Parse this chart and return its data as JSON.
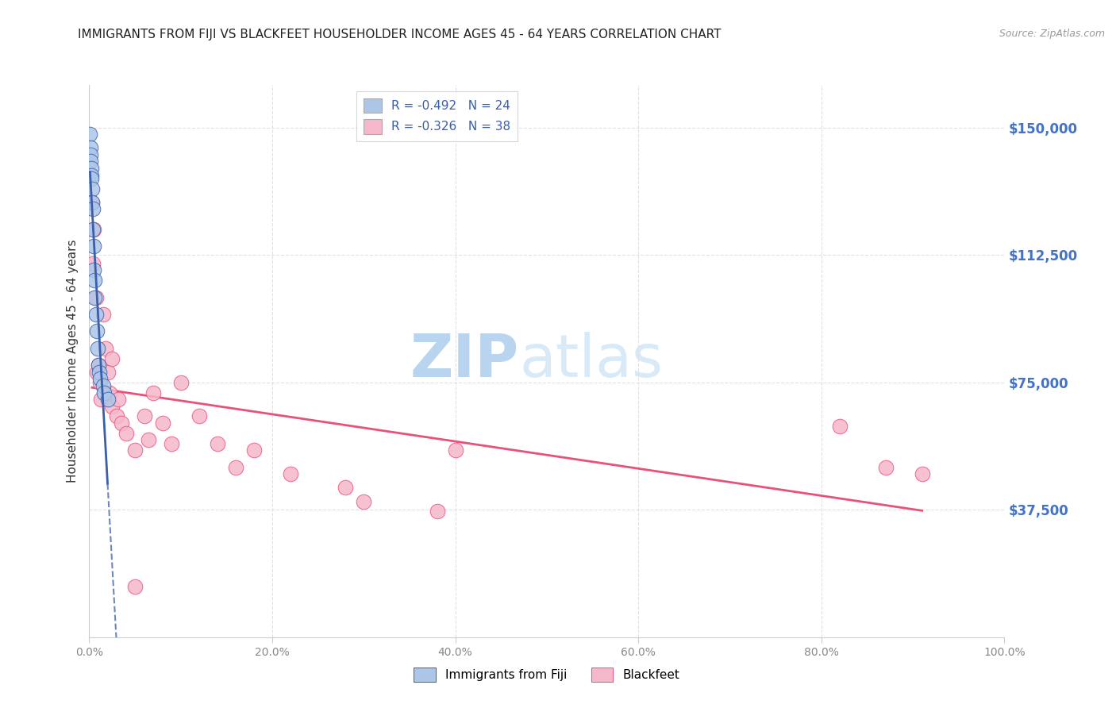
{
  "title": "IMMIGRANTS FROM FIJI VS BLACKFEET HOUSEHOLDER INCOME AGES 45 - 64 YEARS CORRELATION CHART",
  "source": "Source: ZipAtlas.com",
  "ylabel": "Householder Income Ages 45 - 64 years",
  "ytick_labels": [
    "$37,500",
    "$75,000",
    "$112,500",
    "$150,000"
  ],
  "ytick_values": [
    37500,
    75000,
    112500,
    150000
  ],
  "ymin": 0,
  "ymax": 162500,
  "xmin": 0.0,
  "xmax": 1.0,
  "fiji_R": -0.492,
  "fiji_N": 24,
  "blackfeet_R": -0.326,
  "blackfeet_N": 38,
  "fiji_color": "#adc6e8",
  "blackfeet_color": "#f5b8cb",
  "fiji_line_color": "#3a5faa",
  "blackfeet_line_color": "#e8527a",
  "fiji_x": [
    0.0008,
    0.001,
    0.0012,
    0.0015,
    0.002,
    0.002,
    0.0025,
    0.003,
    0.003,
    0.004,
    0.004,
    0.005,
    0.005,
    0.006,
    0.006,
    0.007,
    0.008,
    0.009,
    0.01,
    0.011,
    0.012,
    0.015,
    0.016,
    0.02
  ],
  "fiji_y": [
    148000,
    144000,
    142000,
    140000,
    138000,
    136000,
    135000,
    132000,
    128000,
    126000,
    120000,
    115000,
    108000,
    105000,
    100000,
    95000,
    90000,
    85000,
    80000,
    78000,
    76000,
    74000,
    72000,
    70000
  ],
  "blackfeet_x": [
    0.003,
    0.004,
    0.005,
    0.007,
    0.008,
    0.01,
    0.012,
    0.013,
    0.015,
    0.018,
    0.02,
    0.022,
    0.025,
    0.025,
    0.03,
    0.032,
    0.035,
    0.04,
    0.05,
    0.06,
    0.065,
    0.07,
    0.08,
    0.09,
    0.1,
    0.12,
    0.14,
    0.16,
    0.18,
    0.22,
    0.28,
    0.3,
    0.38,
    0.4,
    0.82,
    0.87,
    0.91,
    0.05
  ],
  "blackfeet_y": [
    128000,
    110000,
    120000,
    100000,
    78000,
    80000,
    75000,
    70000,
    95000,
    85000,
    78000,
    72000,
    82000,
    68000,
    65000,
    70000,
    63000,
    60000,
    55000,
    65000,
    58000,
    72000,
    63000,
    57000,
    75000,
    65000,
    57000,
    50000,
    55000,
    48000,
    44000,
    40000,
    37000,
    55000,
    62000,
    50000,
    48000,
    15000
  ],
  "watermark_zip": "ZIP",
  "watermark_atlas": "atlas",
  "watermark_color": "#d8eaf8",
  "legend_fiji_label": "Immigrants from Fiji",
  "legend_blackfeet_label": "Blackfeet",
  "title_fontsize": 11,
  "ytick_color": "#4472c4",
  "xtick_color": "#888888",
  "source_color": "#999999",
  "grid_color": "#e0e0e0",
  "spine_color": "#cccccc"
}
